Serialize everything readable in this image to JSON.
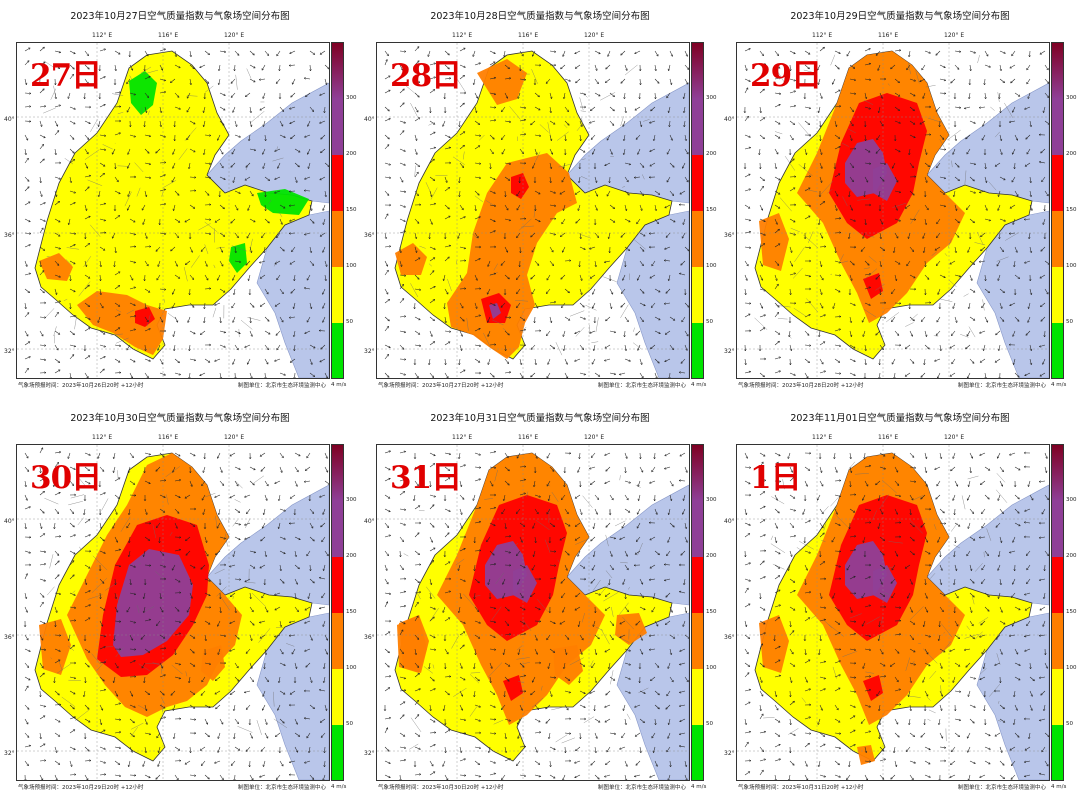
{
  "colors": {
    "sea": "#b9c6ea",
    "good": "#00e400",
    "moderate": "#ffff00",
    "light": "#ff7e00",
    "medium": "#ff0000",
    "heavy": "#8f3f97",
    "severe": "#7e0023"
  },
  "colorbar": {
    "ticks": [
      "50",
      "100",
      "150",
      "200",
      "300"
    ],
    "unit": "4 m/s"
  },
  "axes": {
    "lon_labels": [
      "112° E",
      "116° E",
      "120° E"
    ],
    "lat_labels": [
      "40° N",
      "36° N",
      "32° N"
    ]
  },
  "panels": [
    {
      "title": "2023年10月27日空气质量指数与气象场空间分布图",
      "day": "27日",
      "note_left": "气象场预报时间：2023年10月26日20时 +12小时",
      "note_right": "制图单位：北京市生态环境监测中心",
      "severity": 0
    },
    {
      "title": "2023年10月28日空气质量指数与气象场空间分布图",
      "day": "28日",
      "note_left": "气象场预报时间：2023年10月27日20时 +12小时",
      "note_right": "制图单位：北京市生态环境监测中心",
      "severity": 1
    },
    {
      "title": "2023年10月29日空气质量指数与气象场空间分布图",
      "day": "29日",
      "note_left": "气象场预报时间：2023年10月28日20时 +12小时",
      "note_right": "制图单位：北京市生态环境监测中心",
      "severity": 2
    },
    {
      "title": "2023年10月30日空气质量指数与气象场空间分布图",
      "day": "30日",
      "note_left": "气象场预报时间：2023年10月29日20时 +12小时",
      "note_right": "制图单位：北京市生态环境监测中心",
      "severity": 3
    },
    {
      "title": "2023年10月31日空气质量指数与气象场空间分布图",
      "day": "31日",
      "note_left": "气象场预报时间：2023年10月30日20时 +12小时",
      "note_right": "制图单位：北京市生态环境监测中心",
      "severity": 2
    },
    {
      "title": "2023年11月01日空气质量指数与气象场空间分布图",
      "day": "1日",
      "note_left": "气象场预报时间：2023年10月31日20时 +12小时",
      "note_right": "制图单位：北京市生态环境监测中心",
      "severity": 2
    }
  ]
}
